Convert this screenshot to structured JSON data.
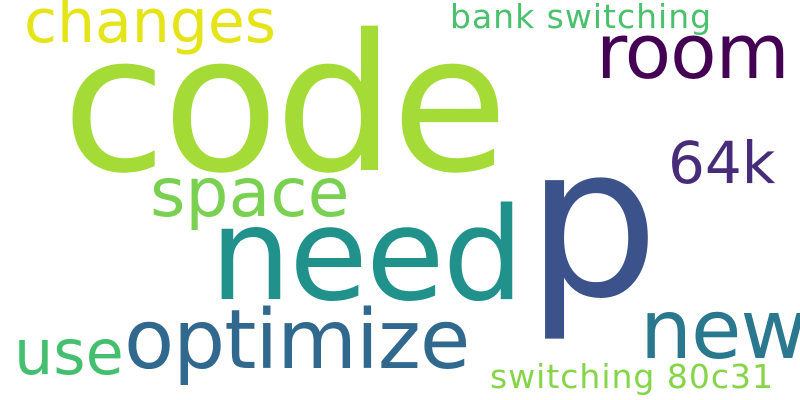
{
  "cloud": {
    "words": [
      {
        "text": "code",
        "color": "#a5db36"
      },
      {
        "text": "p",
        "color": "#3b528b"
      },
      {
        "text": "need",
        "color": "#21918c"
      },
      {
        "text": "optimize",
        "color": "#31688e"
      },
      {
        "text": "new",
        "color": "#2a788e"
      },
      {
        "text": "space",
        "color": "#7ad151"
      },
      {
        "text": "room",
        "color": "#440154"
      },
      {
        "text": "changes",
        "color": "#e5e419"
      },
      {
        "text": "64k",
        "color": "#472c7a"
      },
      {
        "text": "use",
        "color": "#44bf70"
      },
      {
        "text": "bank switching",
        "color": "#4ac16d"
      },
      {
        "text": "switching 80c31",
        "color": "#86d549"
      }
    ]
  }
}
